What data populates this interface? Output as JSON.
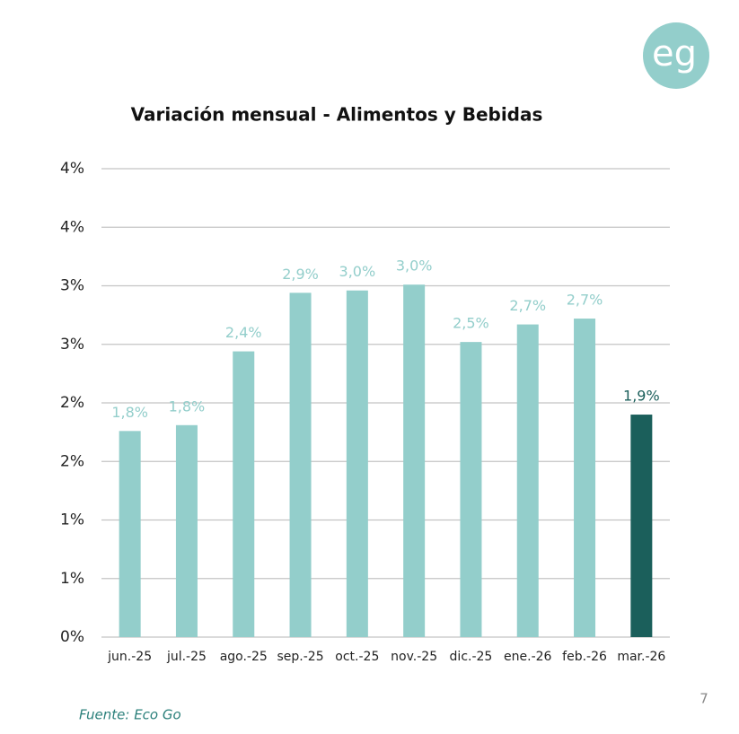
{
  "logo": "eg",
  "source": "Fuente: Eco Go",
  "page_number": "7",
  "chart_data": {
    "type": "bar",
    "title": "Variación mensual - Alimentos y Bebidas",
    "categories": [
      "jun.-25",
      "jul.-25",
      "ago.-25",
      "sep.-25",
      "oct.-25",
      "nov.-25",
      "dic.-25",
      "ene.-26",
      "feb.-26",
      "mar.-26"
    ],
    "values": [
      1.76,
      1.81,
      2.44,
      2.94,
      2.96,
      3.01,
      2.52,
      2.67,
      2.72,
      1.9
    ],
    "value_labels": [
      "1,8%",
      "1,8%",
      "2,4%",
      "2,9%",
      "3,0%",
      "3,0%",
      "2,5%",
      "2,7%",
      "2,7%",
      "1,9%"
    ],
    "colors": [
      "#93cecb",
      "#93cecb",
      "#93cecb",
      "#93cecb",
      "#93cecb",
      "#93cecb",
      "#93cecb",
      "#93cecb",
      "#93cecb",
      "#1b5f5b"
    ],
    "ylim": [
      0,
      4
    ],
    "yticks": [
      {
        "value": 0,
        "label": "0%"
      },
      {
        "value": 0.5,
        "label": "1%"
      },
      {
        "value": 1,
        "label": "1%"
      },
      {
        "value": 1.5,
        "label": "2%"
      },
      {
        "value": 2,
        "label": "2%"
      },
      {
        "value": 2.5,
        "label": "3%"
      },
      {
        "value": 3,
        "label": "3%"
      },
      {
        "value": 3.5,
        "label": "4%"
      },
      {
        "value": 4,
        "label": "4%"
      }
    ],
    "grid": true
  }
}
